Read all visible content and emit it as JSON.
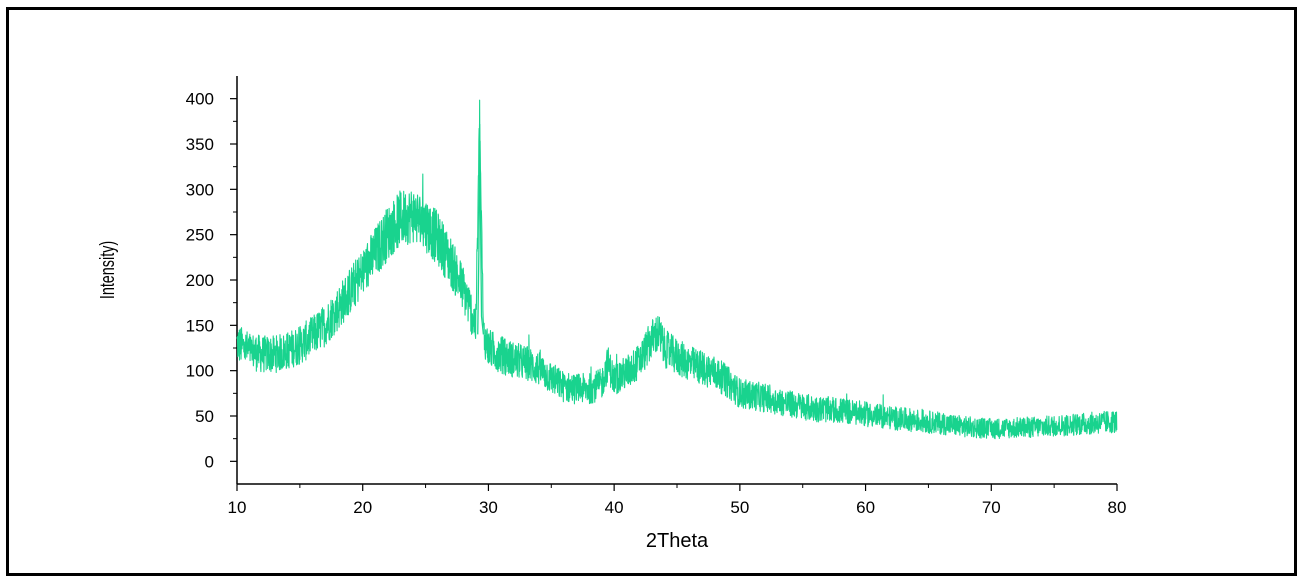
{
  "chart_data": {
    "type": "line",
    "title": "",
    "xlabel": "2Theta",
    "ylabel": "Intensity)",
    "xlim": [
      10,
      80
    ],
    "ylim": [
      -25,
      425
    ],
    "xticks": [
      10,
      20,
      30,
      40,
      50,
      60,
      70,
      80
    ],
    "xtick_labels": [
      "10",
      "20",
      "30",
      "40",
      "50",
      "60",
      "70",
      "80"
    ],
    "yticks": [
      0,
      50,
      100,
      150,
      200,
      250,
      300,
      350,
      400
    ],
    "ytick_labels": [
      "0",
      "50",
      "100",
      "150",
      "200",
      "250",
      "300",
      "350",
      "400"
    ],
    "grid": false,
    "legend": "none",
    "line_color": "#19D38E",
    "series": [
      {
        "x": [
          10,
          11,
          12,
          13,
          14,
          15,
          16,
          17,
          18,
          19,
          20,
          21,
          22,
          23,
          24,
          25,
          26,
          27,
          28,
          29,
          29.3,
          29.6,
          30,
          31,
          32,
          33,
          34,
          35,
          36,
          37,
          38,
          39,
          39.5,
          40,
          41,
          42,
          43,
          43.5,
          44,
          45,
          46,
          47,
          48,
          49,
          50,
          52,
          54,
          56,
          58,
          60,
          62,
          64,
          66,
          68,
          70,
          72,
          74,
          76,
          78,
          80
        ],
        "y": [
          130,
          122,
          118,
          118,
          122,
          128,
          138,
          150,
          168,
          188,
          208,
          230,
          252,
          268,
          272,
          262,
          245,
          220,
          190,
          150,
          372,
          140,
          125,
          118,
          112,
          108,
          102,
          92,
          82,
          80,
          80,
          85,
          108,
          90,
          98,
          110,
          135,
          142,
          125,
          115,
          108,
          103,
          98,
          88,
          75,
          70,
          63,
          58,
          56,
          52,
          48,
          45,
          42,
          38,
          36,
          37,
          38,
          40,
          42,
          44
        ]
      }
    ]
  }
}
